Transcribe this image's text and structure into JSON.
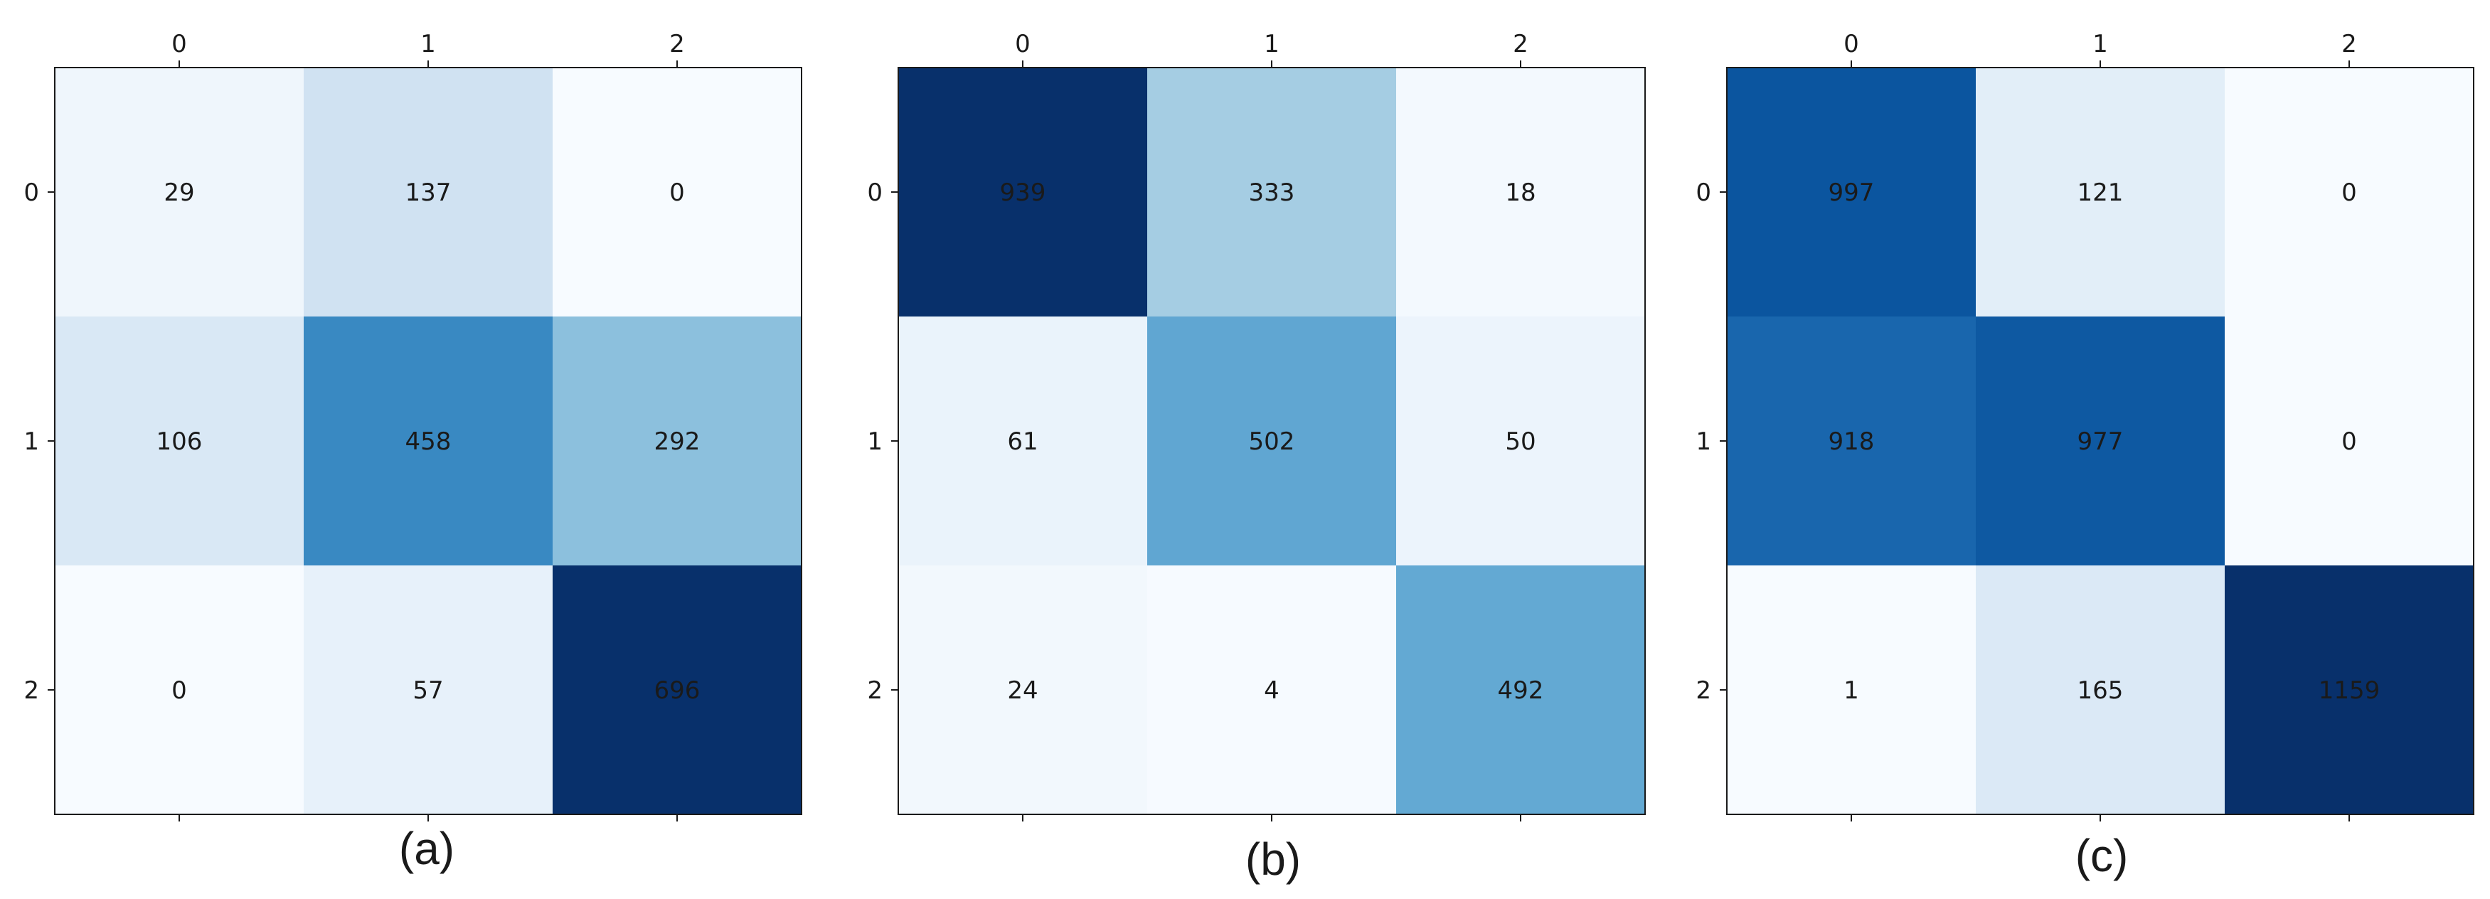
{
  "figure": {
    "panels": [
      "(a)",
      "(b)",
      "(c)"
    ]
  },
  "chart_data": [
    {
      "type": "heatmap",
      "caption": "(a)",
      "x_ticks": [
        "0",
        "1",
        "2"
      ],
      "y_ticks": [
        "0",
        "1",
        "2"
      ],
      "colormap": "Blues",
      "vmax": 696,
      "values": [
        [
          29,
          137,
          0
        ],
        [
          106,
          458,
          292
        ],
        [
          0,
          57,
          696
        ]
      ]
    },
    {
      "type": "heatmap",
      "caption": "(b)",
      "x_ticks": [
        "0",
        "1",
        "2"
      ],
      "y_ticks": [
        "0",
        "1",
        "2"
      ],
      "colormap": "Blues",
      "vmax": 939,
      "values": [
        [
          939,
          333,
          18
        ],
        [
          61,
          502,
          50
        ],
        [
          24,
          4,
          492
        ]
      ]
    },
    {
      "type": "heatmap",
      "caption": "(c)",
      "x_ticks": [
        "0",
        "1",
        "2"
      ],
      "y_ticks": [
        "0",
        "1",
        "2"
      ],
      "colormap": "Blues",
      "vmax": 1159,
      "values": [
        [
          997,
          121,
          0
        ],
        [
          918,
          977,
          0
        ],
        [
          1,
          165,
          1159
        ]
      ]
    }
  ]
}
